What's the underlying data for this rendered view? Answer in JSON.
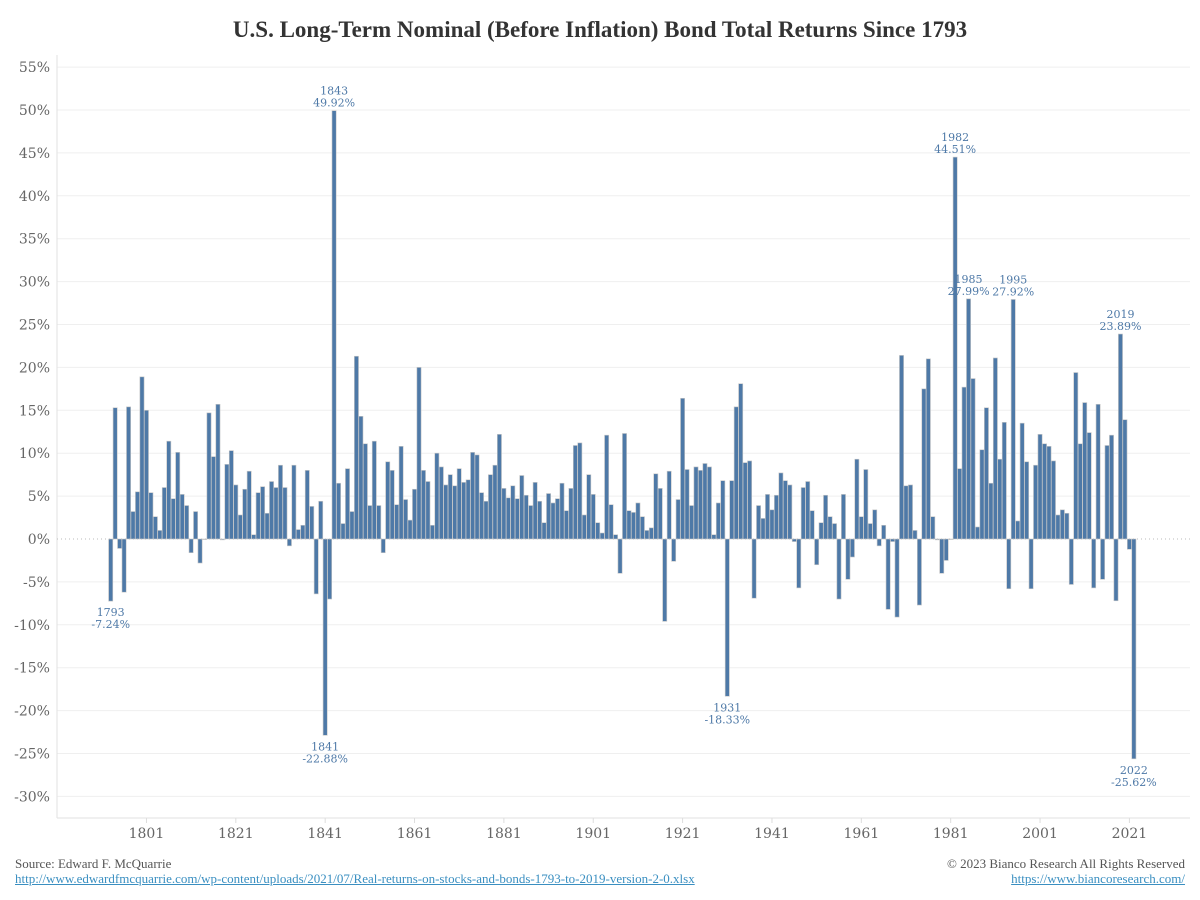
{
  "chart_data": {
    "type": "bar",
    "title": "U.S. Long-Term Nominal (Before Inflation) Bond Total Returns Since 1793",
    "xlabel": "",
    "ylabel": "",
    "x_start": 1793,
    "x_end": 2022,
    "ylim": [
      -30,
      55
    ],
    "y_ticks": [
      "55%",
      "50%",
      "45%",
      "40%",
      "35%",
      "30%",
      "25%",
      "20%",
      "15%",
      "10%",
      "5%",
      "0%",
      "-5%",
      "-10%",
      "-15%",
      "-20%",
      "-25%",
      "-30%"
    ],
    "y_tick_values": [
      55,
      50,
      45,
      40,
      35,
      30,
      25,
      20,
      15,
      10,
      5,
      0,
      -5,
      -10,
      -15,
      -20,
      -25,
      -30
    ],
    "x_ticks": [
      "1801",
      "1821",
      "1841",
      "1861",
      "1881",
      "1901",
      "1921",
      "1941",
      "1961",
      "1981",
      "2001",
      "2021"
    ],
    "grid": true,
    "bar_color": "#4e79a7",
    "annotation_color": "#4e79a7",
    "values": [
      -7.24,
      15.3,
      -1.1,
      -6.2,
      15.4,
      3.2,
      5.5,
      18.9,
      15.0,
      5.4,
      2.6,
      1.0,
      6.0,
      11.4,
      4.7,
      10.1,
      5.2,
      3.9,
      -1.6,
      3.2,
      -2.8,
      0,
      14.7,
      9.6,
      15.7,
      -0.1,
      8.7,
      10.3,
      6.3,
      2.8,
      5.8,
      7.9,
      0.5,
      5.4,
      6.1,
      3.0,
      6.7,
      6.0,
      8.6,
      6.0,
      -0.8,
      8.6,
      1.1,
      1.6,
      8.0,
      3.8,
      -6.4,
      4.4,
      -22.88,
      -7.0,
      49.92,
      6.5,
      1.8,
      8.2,
      3.2,
      21.3,
      14.3,
      11.1,
      3.9,
      11.4,
      3.9,
      -1.6,
      9.0,
      8.0,
      4.0,
      10.8,
      4.6,
      2.2,
      5.8,
      20.0,
      8.0,
      6.7,
      1.6,
      10.0,
      8.4,
      6.3,
      7.5,
      6.2,
      8.2,
      6.6,
      6.9,
      10.1,
      9.8,
      5.4,
      4.4,
      7.5,
      8.6,
      12.2,
      5.9,
      4.8,
      6.2,
      4.7,
      7.4,
      5.1,
      3.9,
      6.6,
      4.4,
      1.9,
      5.3,
      4.2,
      4.7,
      6.5,
      3.3,
      5.9,
      10.9,
      11.2,
      2.8,
      7.5,
      5.2,
      1.9,
      0.7,
      12.1,
      4.0,
      0.5,
      -4.0,
      12.3,
      3.3,
      3.1,
      4.2,
      2.6,
      1.0,
      1.3,
      7.6,
      5.9,
      -9.6,
      7.9,
      -2.6,
      4.6,
      16.4,
      8.1,
      3.9,
      8.4,
      8.0,
      8.8,
      8.4,
      0.5,
      4.2,
      6.8,
      -18.33,
      6.8,
      15.4,
      18.1,
      8.9,
      9.1,
      -6.9,
      3.9,
      2.4,
      5.2,
      3.4,
      5.1,
      7.7,
      6.8,
      6.3,
      -0.3,
      -5.7,
      6.0,
      6.7,
      3.3,
      -3.0,
      1.9,
      5.1,
      2.6,
      1.8,
      -7.0,
      5.2,
      -4.7,
      -2.1,
      9.3,
      2.6,
      8.1,
      1.8,
      3.4,
      -0.8,
      1.6,
      -8.2,
      -0.3,
      -9.1,
      21.4,
      6.2,
      6.3,
      1.0,
      -7.7,
      17.5,
      21.0,
      2.6,
      -0.1,
      -4.0,
      -2.5,
      0.0,
      44.51,
      8.2,
      17.7,
      27.99,
      18.7,
      1.4,
      10.4,
      15.3,
      6.5,
      21.1,
      9.3,
      13.6,
      -5.8,
      27.92,
      2.1,
      13.5,
      9.0,
      -5.8,
      8.6,
      12.2,
      11.1,
      10.8,
      9.1,
      2.8,
      3.4,
      3.0,
      -5.3,
      19.4,
      11.1,
      15.9,
      12.4,
      -5.7,
      15.7,
      -4.7,
      10.9,
      12.1,
      -7.2,
      23.89,
      13.9,
      -1.2,
      -25.62
    ],
    "annotations": [
      {
        "year": "1793",
        "label": "-7.24%"
      },
      {
        "year": "1841",
        "label": "-22.88%"
      },
      {
        "year": "1843",
        "label": "49.92%"
      },
      {
        "year": "1931",
        "label": "-18.33%"
      },
      {
        "year": "1982",
        "label": "44.51%"
      },
      {
        "year": "1985",
        "label": "27.99%"
      },
      {
        "year": "1995",
        "label": "27.92%"
      },
      {
        "year": "2019",
        "label": "23.89%"
      },
      {
        "year": "2022",
        "label": "-25.62%"
      }
    ]
  },
  "footer": {
    "source": "Source: Edward F. McQuarrie",
    "source_link": "http://www.edwardfmcquarrie.com/wp-content/uploads/2021/07/Real-returns-on-stocks-and-bonds-1793-to-2019-version-2-0.xlsx",
    "copyright": "© 2023 Bianco Research All Rights Reserved",
    "site_link": "https://www.biancoresearch.com/"
  }
}
